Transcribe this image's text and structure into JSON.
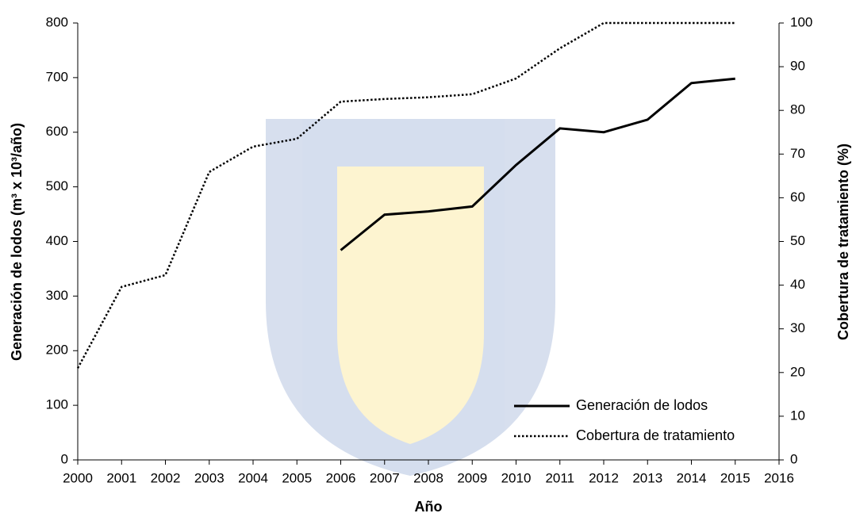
{
  "chart_data": {
    "type": "line",
    "xlabel": "Año",
    "ylabel": "Generación de lodos (m³ x 10³/año)",
    "y2label": "Cobertura de tratamiento (%)",
    "x": [
      2000,
      2001,
      2002,
      2003,
      2004,
      2005,
      2006,
      2007,
      2008,
      2009,
      2010,
      2011,
      2012,
      2013,
      2014,
      2015
    ],
    "series": [
      {
        "name": "Generación de lodos",
        "color": "#000000",
        "style": "solid",
        "values": [
          null,
          null,
          null,
          null,
          null,
          null,
          384,
          449,
          455,
          464,
          540,
          607,
          600,
          623,
          690,
          698
        ]
      },
      {
        "name": "Cobertura de tratamiento",
        "color": "#000000",
        "style": "dotted",
        "axis": "y2",
        "values": [
          21,
          39.6,
          42.3,
          65.9,
          71.7,
          73.5,
          82,
          82.6,
          83,
          83.7,
          87.3,
          94.2,
          100,
          100,
          100,
          100
        ]
      }
    ],
    "xlim": [
      2000,
      2016
    ],
    "xticks": [
      2000,
      2001,
      2002,
      2003,
      2004,
      2005,
      2006,
      2007,
      2008,
      2009,
      2010,
      2011,
      2012,
      2013,
      2014,
      2015,
      2016
    ],
    "ylim": [
      0,
      800
    ],
    "yticks": [
      0,
      100,
      200,
      300,
      400,
      500,
      600,
      700,
      800
    ],
    "y2lim": [
      0,
      100
    ],
    "y2ticks": [
      0,
      10,
      20,
      30,
      40,
      50,
      60,
      70,
      80,
      90,
      100
    ],
    "grid": false,
    "legend": "lower right"
  }
}
